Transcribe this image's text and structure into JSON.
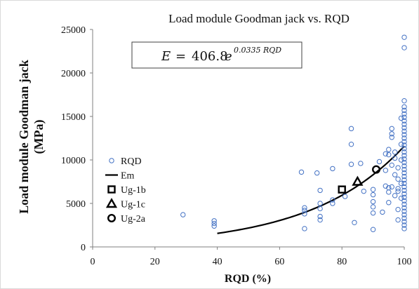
{
  "chart_data": {
    "type": "scatter",
    "title": "Load module Goodman jack vs.  RQD",
    "xlabel": "RQD (%)",
    "ylabel_line1": "Load module Goodman jack",
    "ylabel_line2": "(MPa)",
    "xlim": [
      0,
      100
    ],
    "ylim": [
      0,
      25000
    ],
    "xticks": [
      0,
      20,
      40,
      60,
      80,
      100
    ],
    "yticks": [
      0,
      5000,
      10000,
      15000,
      20000,
      25000
    ],
    "grid": false,
    "legend_position": "left",
    "equation": {
      "lhs": "E",
      "eq": "=",
      "coef": "406.8",
      "base": "e",
      "exponent": "0.0335 RQD"
    },
    "fit": {
      "name": "Em",
      "a": 406.8,
      "b": 0.0335,
      "x_range": [
        40,
        100
      ],
      "color": "#000000"
    },
    "series": [
      {
        "name": "RQD",
        "marker": "circle",
        "color": "#4472c4",
        "points": [
          [
            29,
            3700
          ],
          [
            39,
            3000
          ],
          [
            39,
            2700
          ],
          [
            39,
            2400
          ],
          [
            67,
            8600
          ],
          [
            68,
            4500
          ],
          [
            68,
            4200
          ],
          [
            68,
            3800
          ],
          [
            68,
            2100
          ],
          [
            72,
            8500
          ],
          [
            73,
            6500
          ],
          [
            73,
            5000
          ],
          [
            73,
            4400
          ],
          [
            73,
            3500
          ],
          [
            73,
            3100
          ],
          [
            77,
            9000
          ],
          [
            77,
            5400
          ],
          [
            77,
            5000
          ],
          [
            81,
            5800
          ],
          [
            83,
            13600
          ],
          [
            83,
            11800
          ],
          [
            83,
            9500
          ],
          [
            84,
            2800
          ],
          [
            86,
            9600
          ],
          [
            87,
            6400
          ],
          [
            90,
            6600
          ],
          [
            90,
            6000
          ],
          [
            90,
            5200
          ],
          [
            90,
            4600
          ],
          [
            90,
            3900
          ],
          [
            90,
            2000
          ],
          [
            92,
            9800
          ],
          [
            93,
            4000
          ],
          [
            94,
            10700
          ],
          [
            94,
            8800
          ],
          [
            94,
            7000
          ],
          [
            95,
            11200
          ],
          [
            95,
            10600
          ],
          [
            95,
            6800
          ],
          [
            95,
            6300
          ],
          [
            95,
            5100
          ],
          [
            96,
            13600
          ],
          [
            96,
            13000
          ],
          [
            96,
            12600
          ],
          [
            96,
            9400
          ],
          [
            96,
            6900
          ],
          [
            97,
            10900
          ],
          [
            97,
            10200
          ],
          [
            97,
            8300
          ],
          [
            97,
            5900
          ],
          [
            98,
            9100
          ],
          [
            98,
            7800
          ],
          [
            98,
            6700
          ],
          [
            98,
            6400
          ],
          [
            98,
            4300
          ],
          [
            98,
            3100
          ],
          [
            99,
            14800
          ],
          [
            99,
            11800
          ],
          [
            99,
            10000
          ],
          [
            99,
            7300
          ],
          [
            99,
            5600
          ],
          [
            100,
            24100
          ],
          [
            100,
            22900
          ],
          [
            100,
            16800
          ],
          [
            100,
            16100
          ],
          [
            100,
            15700
          ],
          [
            100,
            15300
          ],
          [
            100,
            14900
          ],
          [
            100,
            14500
          ],
          [
            100,
            14100
          ],
          [
            100,
            13700
          ],
          [
            100,
            13300
          ],
          [
            100,
            12900
          ],
          [
            100,
            12500
          ],
          [
            100,
            12100
          ],
          [
            100,
            11700
          ],
          [
            100,
            11300
          ],
          [
            100,
            10900
          ],
          [
            100,
            10500
          ],
          [
            100,
            10100
          ],
          [
            100,
            9700
          ],
          [
            100,
            9300
          ],
          [
            100,
            8900
          ],
          [
            100,
            8500
          ],
          [
            100,
            8100
          ],
          [
            100,
            7700
          ],
          [
            100,
            7300
          ],
          [
            100,
            6900
          ],
          [
            100,
            6500
          ],
          [
            100,
            6100
          ],
          [
            100,
            5700
          ],
          [
            100,
            5300
          ],
          [
            100,
            4900
          ],
          [
            100,
            4500
          ],
          [
            100,
            4100
          ],
          [
            100,
            3700
          ],
          [
            100,
            3300
          ],
          [
            100,
            2900
          ],
          [
            100,
            2500
          ],
          [
            100,
            2100
          ]
        ]
      },
      {
        "name": "Ug-1b",
        "marker": "square",
        "color": "#000000",
        "points": [
          [
            80,
            6600
          ]
        ]
      },
      {
        "name": "Ug-1c",
        "marker": "triangle",
        "color": "#000000",
        "points": [
          [
            85,
            7500
          ]
        ]
      },
      {
        "name": "Ug-2a",
        "marker": "circle-bold",
        "color": "#000000",
        "points": [
          [
            91,
            8900
          ]
        ]
      }
    ]
  }
}
